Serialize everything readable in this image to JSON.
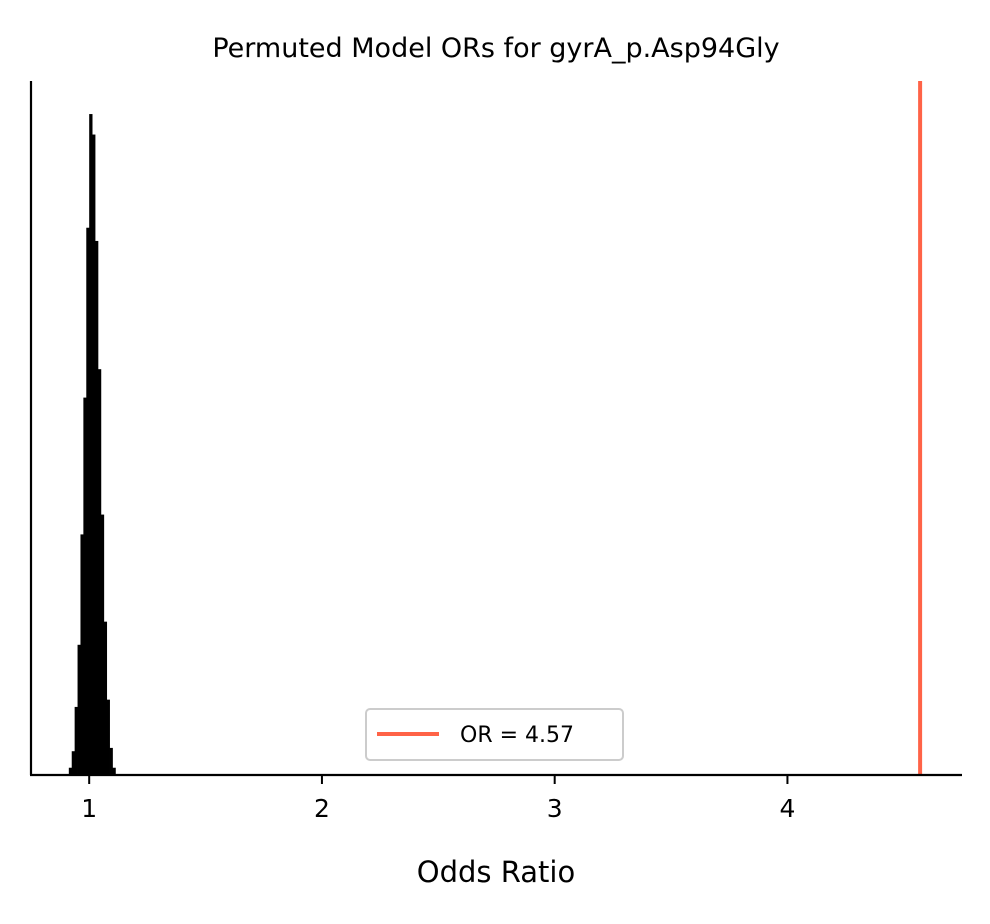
{
  "chart_data": {
    "type": "histogram",
    "title": "Permuted Model ORs for gyrA_p.Asp94Gly",
    "xlabel": "Odds Ratio",
    "ylabel": "",
    "xlim": [
      0.75,
      4.75
    ],
    "ylim": [
      0,
      1.05
    ],
    "xticks": [
      1,
      2,
      3,
      4
    ],
    "yticks_shown": false,
    "grid": false,
    "legend": {
      "placement": "lower-center",
      "entries": [
        {
          "label": "OR = 4.57",
          "color": "#ff6347",
          "kind": "line"
        }
      ]
    },
    "histogram": {
      "color": "#000000",
      "bin_width": 0.0125,
      "bins": [
        {
          "x0": 0.9125,
          "height": 0.011
        },
        {
          "x0": 0.925,
          "height": 0.036
        },
        {
          "x0": 0.9375,
          "height": 0.103
        },
        {
          "x0": 0.95,
          "height": 0.197
        },
        {
          "x0": 0.9625,
          "height": 0.364
        },
        {
          "x0": 0.975,
          "height": 0.571
        },
        {
          "x0": 0.9875,
          "height": 0.828
        },
        {
          "x0": 1.0,
          "height": 1.0
        },
        {
          "x0": 1.0125,
          "height": 0.969
        },
        {
          "x0": 1.025,
          "height": 0.808
        },
        {
          "x0": 1.0375,
          "height": 0.614
        },
        {
          "x0": 1.05,
          "height": 0.394
        },
        {
          "x0": 1.0625,
          "height": 0.232
        },
        {
          "x0": 1.075,
          "height": 0.114
        },
        {
          "x0": 1.0875,
          "height": 0.041
        },
        {
          "x0": 1.1,
          "height": 0.011
        }
      ]
    },
    "reference_line": {
      "label": "OR = 4.57",
      "x": 4.57,
      "color": "#ff6347"
    }
  }
}
